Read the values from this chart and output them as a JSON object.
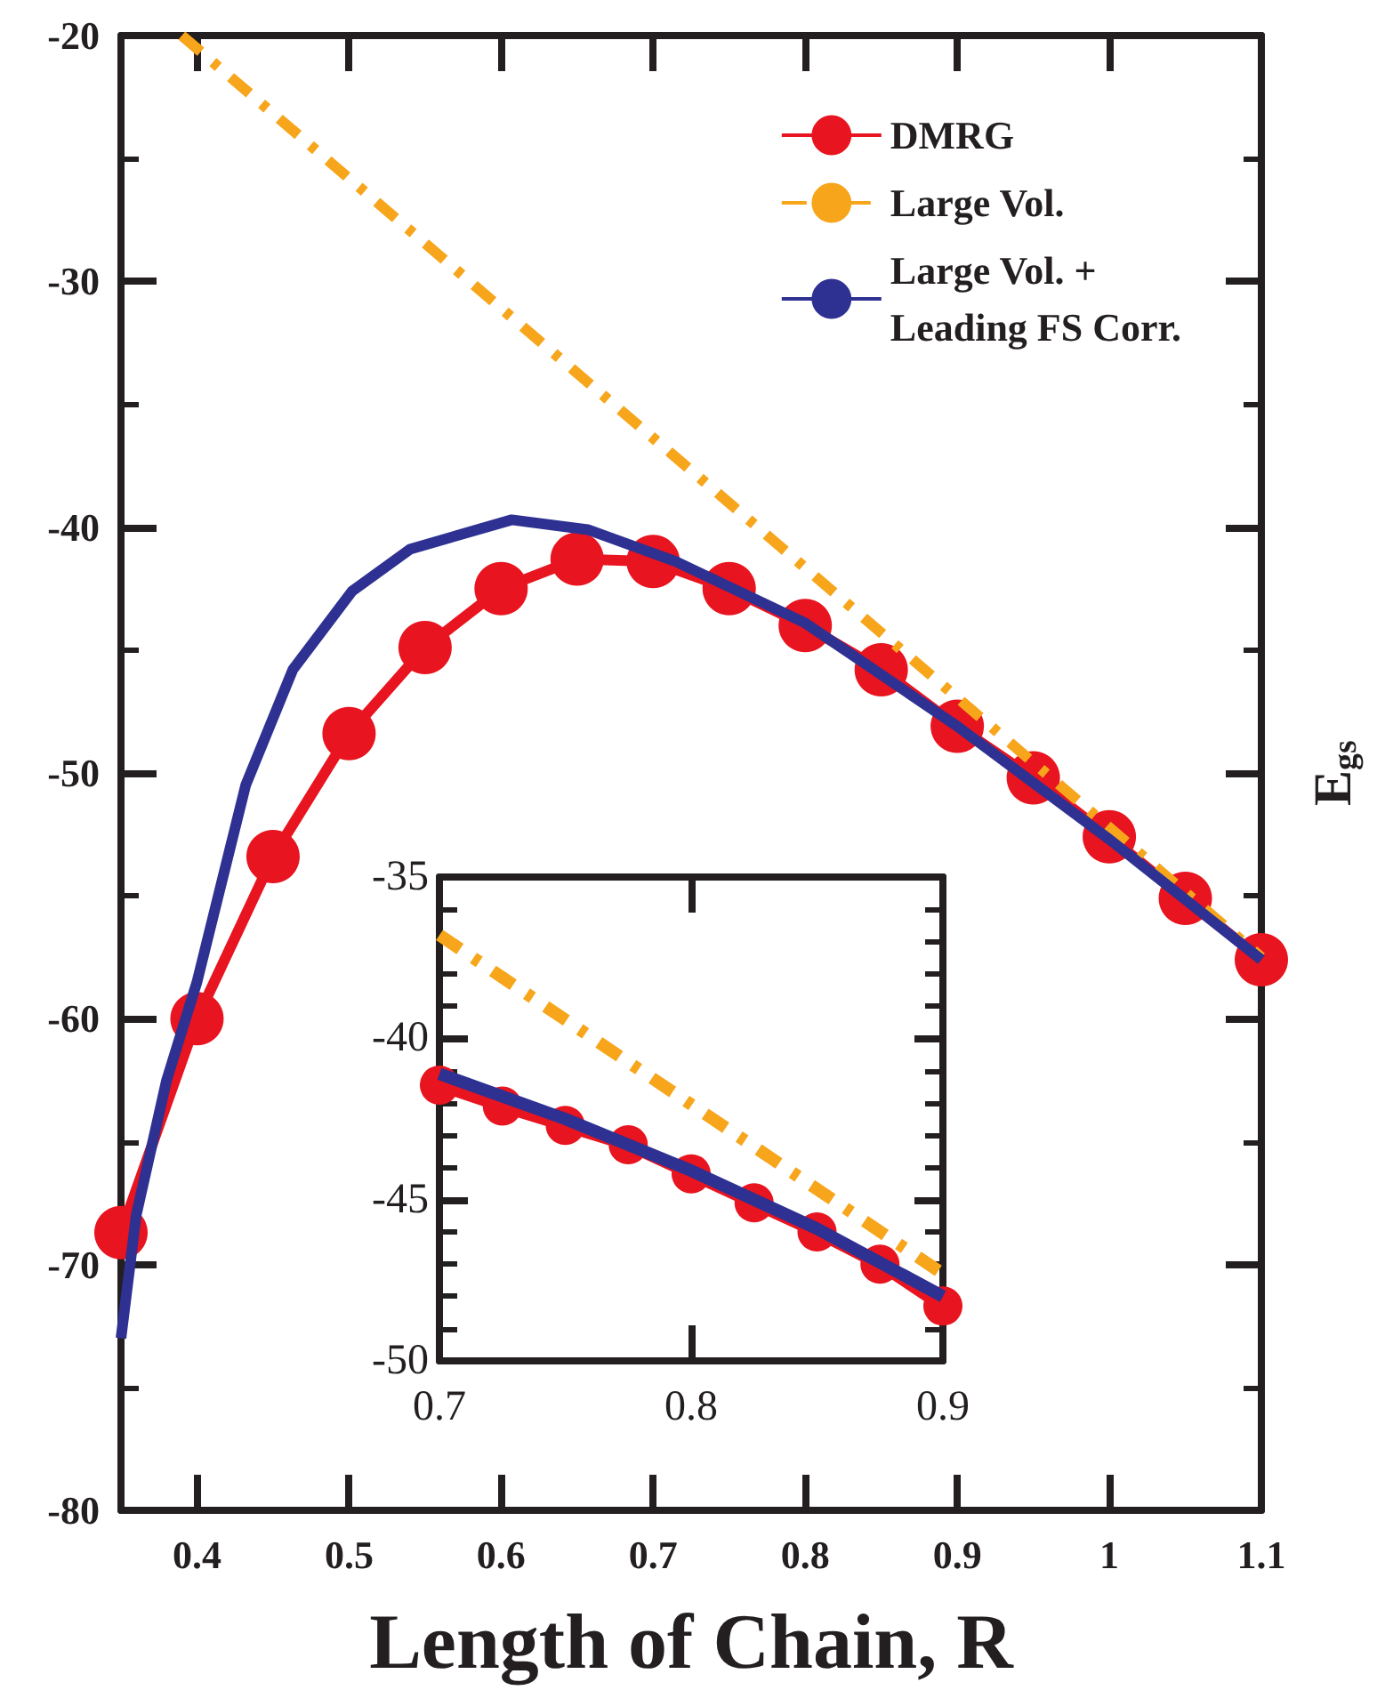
{
  "chart_data": [
    {
      "type": "line",
      "xlabel": "Length of Chain, R",
      "ylabel": "E$_{gs}$",
      "xlim": [
        0.35,
        1.1
      ],
      "ylim": [
        -80,
        -20
      ],
      "xticks": [
        0.4,
        0.5,
        0.6,
        0.7,
        0.8,
        0.9,
        1,
        1.1
      ],
      "yticks": [
        -80,
        -70,
        -60,
        -50,
        -40,
        -30,
        -20
      ],
      "grid": false,
      "legend": "top right",
      "series": [
        {
          "name": "DMRG",
          "color": "#e8141f",
          "marker": "circle",
          "line_style": "solid",
          "x": [
            0.35,
            0.4,
            0.45,
            0.5,
            0.55,
            0.6,
            0.65,
            0.7,
            0.75,
            0.8,
            0.85,
            0.9,
            0.95,
            1.0,
            1.05,
            1.1
          ],
          "values": [
            -68.7,
            -60,
            -53.4,
            -48.4,
            -44.9,
            -42.5,
            -41.3,
            -41.4,
            -42.5,
            -44,
            -45.8,
            -48.1,
            -50.2,
            -52.6,
            -55.1,
            -57.6
          ]
        },
        {
          "name": "Large Vol.",
          "color": "#f7a51b",
          "marker": "none",
          "line_style": "dashed",
          "x": [
            0.39,
            1.1
          ],
          "values": [
            -20,
            -57.5
          ]
        },
        {
          "name": "Large Vol. +\nLeading FS Corr.",
          "color": "#2e3192",
          "marker": "none",
          "line_style": "solid",
          "x": [
            0.35,
            0.36,
            0.38,
            0.4,
            0.432,
            0.463,
            0.502,
            0.54,
            0.607,
            0.657,
            0.715,
            0.8,
            0.9,
            1.0,
            1.1
          ],
          "values": [
            -73,
            -68,
            -62.5,
            -58.5,
            -50.5,
            -45.8,
            -42.6,
            -40.9,
            -39.7,
            -40.1,
            -41.4,
            -43.9,
            -48.1,
            -52.7,
            -57.6
          ]
        }
      ]
    },
    {
      "type": "line",
      "xlim": [
        0.7,
        0.9
      ],
      "ylim": [
        -50,
        -35
      ],
      "xticks": [
        0.7,
        0.8,
        0.9
      ],
      "yticks": [
        -50,
        -45,
        -40,
        -35
      ],
      "grid": false,
      "legend": false,
      "series": [
        {
          "color": "#e8141f",
          "marker": "circle",
          "line_style": "solid",
          "x": [
            0.7,
            0.725,
            0.75,
            0.775,
            0.8,
            0.825,
            0.85,
            0.875,
            0.9
          ],
          "values": [
            -41.45,
            -42.1,
            -42.7,
            -43.3,
            -44.2,
            -45.1,
            -46,
            -47,
            -48.3
          ]
        },
        {
          "color": "#f7a51b",
          "marker": "none",
          "line_style": "dashed",
          "x": [
            0.7,
            0.9
          ],
          "values": [
            -36.8,
            -47.3
          ]
        },
        {
          "color": "#2e3192",
          "marker": "none",
          "line_style": "solid",
          "x": [
            0.7,
            0.75,
            0.8,
            0.85,
            0.9
          ],
          "values": [
            -41.1,
            -42.5,
            -44.1,
            -45.9,
            -48
          ]
        }
      ]
    }
  ]
}
